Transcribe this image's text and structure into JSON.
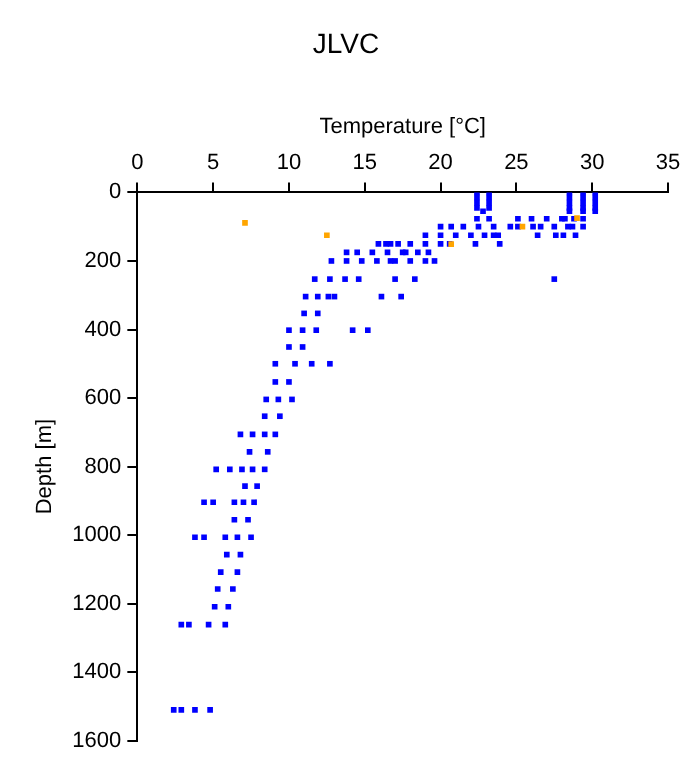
{
  "chart_data": {
    "type": "scatter",
    "title": "JLVC",
    "xlabel": "Temperature [°C]",
    "ylabel": "Depth [m]",
    "xlim": [
      0,
      35
    ],
    "xticks": [
      0,
      5,
      10,
      15,
      20,
      25,
      30,
      35
    ],
    "ylim": [
      1600,
      0
    ],
    "yticks": [
      0,
      200,
      400,
      600,
      800,
      1000,
      1200,
      1400,
      1600
    ],
    "grid": false,
    "legend": false,
    "marker": "square",
    "series": [
      {
        "color": "#0000ff",
        "x": [
          22.4,
          23.2,
          22.4,
          23.2,
          22.4,
          23.2,
          22.4,
          23.2,
          22.8,
          28.5,
          29.4,
          30.2,
          28.5,
          29.4,
          30.2,
          28.5,
          29.4,
          30.2,
          28.5,
          29.4,
          30.2,
          28.5,
          29.4,
          30.2,
          22.4,
          23.2,
          25.1,
          26,
          27,
          28,
          28.2,
          28.8,
          29.4,
          20.0,
          20.7,
          21.5,
          22.5,
          23.5,
          24.6,
          25.1,
          26.1,
          26.6,
          27.5,
          28.4,
          28.7,
          29.4,
          19.0,
          20,
          21,
          22,
          22.9,
          23.5,
          23.8,
          26.4,
          27.6,
          28.1,
          28.9,
          15.9,
          16.4,
          16.7,
          17.2,
          18,
          19,
          20,
          20.6,
          22.3,
          23.9,
          13.8,
          14.5,
          15.5,
          16.5,
          17.5,
          17.7,
          18.5,
          19.2,
          12.8,
          13.8,
          14.8,
          15.8,
          16.7,
          17,
          18,
          19,
          19.6,
          11.7,
          12.7,
          13.7,
          14.6,
          17,
          18.3,
          27.5,
          11.1,
          11.9,
          12.6,
          13,
          16.1,
          17.4,
          11.0,
          11.9,
          10.0,
          10.9,
          11.8,
          14.2,
          15.2,
          10.0,
          10.9,
          9.1,
          10.4,
          11.5,
          12.7,
          9.1,
          10.0,
          8.5,
          9.3,
          10.2,
          8.4,
          9.4,
          6.8,
          7.6,
          8.4,
          9.1,
          7.4,
          8.6,
          5.2,
          6.1,
          6.9,
          7.6,
          8.4,
          7.1,
          7.9,
          4.4,
          5.0,
          6.4,
          7.0,
          7.7,
          6.4,
          7.3,
          3.8,
          4.4,
          5.8,
          6.6,
          7.5,
          5.9,
          6.8,
          5.5,
          6.6,
          5.3,
          6.3,
          5.1,
          6.0,
          2.9,
          3.4,
          4.7,
          5.8,
          2.4,
          2.9,
          3.8,
          4.8
        ],
        "values": [
          0,
          0,
          15,
          15,
          30,
          30,
          45,
          45,
          55,
          0,
          0,
          0,
          15,
          15,
          15,
          30,
          30,
          30,
          45,
          45,
          45,
          55,
          55,
          55,
          77,
          77,
          77,
          77,
          77,
          77,
          77,
          77,
          77,
          100,
          100,
          100,
          100,
          100,
          100,
          100,
          100,
          100,
          100,
          100,
          100,
          100,
          125,
          125,
          125,
          125,
          125,
          125,
          125,
          125,
          125,
          125,
          125,
          150,
          150,
          150,
          150,
          150,
          150,
          150,
          150,
          150,
          150,
          175,
          175,
          175,
          175,
          175,
          175,
          175,
          175,
          200,
          200,
          200,
          200,
          200,
          200,
          200,
          200,
          200,
          253,
          253,
          253,
          253,
          253,
          253,
          253,
          304,
          304,
          304,
          304,
          304,
          304,
          353,
          353,
          402,
          402,
          402,
          402,
          402,
          451,
          451,
          500,
          500,
          500,
          500,
          553,
          553,
          604,
          604,
          604,
          653,
          653,
          706,
          706,
          706,
          706,
          757,
          757,
          808,
          808,
          808,
          808,
          808,
          857,
          857,
          904,
          904,
          904,
          904,
          904,
          955,
          955,
          1006,
          1006,
          1006,
          1006,
          1006,
          1057,
          1057,
          1108,
          1108,
          1157,
          1157,
          1209,
          1209,
          1261,
          1261,
          1261,
          1261,
          1510,
          1510,
          1510,
          1510
        ]
      },
      {
        "color": "#ffa500",
        "x": [
          7.1,
          12.5,
          20.7,
          25.4,
          29.0
        ],
        "values": [
          89,
          125,
          151,
          100,
          75
        ]
      }
    ]
  }
}
